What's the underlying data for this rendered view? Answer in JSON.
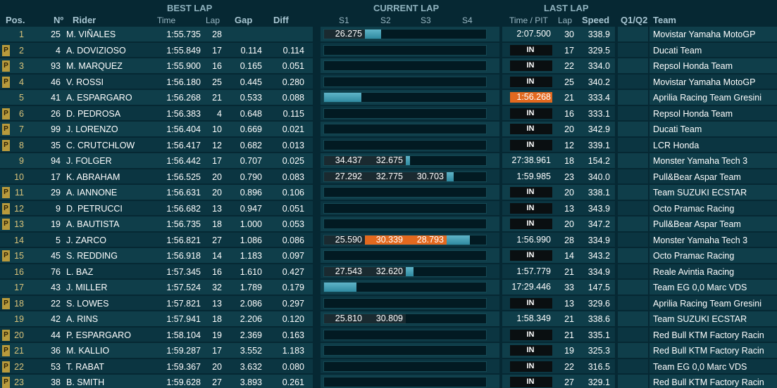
{
  "headers": {
    "best_lap": "BEST LAP",
    "current_lap": "CURRENT LAP",
    "last_lap": "LAST LAP",
    "pos": "Pos.",
    "num": "Nº",
    "rider": "Rider",
    "time": "Time",
    "lap": "Lap",
    "gap": "Gap",
    "diff": "Diff",
    "s1": "S1",
    "s2": "S2",
    "s3": "S3",
    "s4": "S4",
    "time_pit": "Time / PIT",
    "last_lap_col": "Lap",
    "speed": "Speed",
    "q1q2": "Q1/Q2",
    "team": "Team"
  },
  "rows": [
    {
      "pos": "1",
      "pit": false,
      "num": "25",
      "rider": "M. VIÑALES",
      "time": "1:55.735",
      "lap": "28",
      "gap": "",
      "diff": "",
      "s": [
        "26.275",
        "",
        "",
        ""
      ],
      "orange": [
        false,
        false,
        false,
        false
      ],
      "progress": 0.35,
      "last": "2:07.500",
      "last_type": "time",
      "llap": "30",
      "speed": "338.9",
      "team": "Movistar Yamaha MotoGP"
    },
    {
      "pos": "2",
      "pit": true,
      "num": "4",
      "rider": "A. DOVIZIOSO",
      "time": "1:55.849",
      "lap": "17",
      "gap": "0.114",
      "diff": "0.114",
      "s": [
        "",
        "",
        "",
        ""
      ],
      "orange": [
        false,
        false,
        false,
        false
      ],
      "progress": 0,
      "last": "IN",
      "last_type": "in",
      "llap": "17",
      "speed": "329.5",
      "team": "Ducati Team"
    },
    {
      "pos": "3",
      "pit": true,
      "num": "93",
      "rider": "M. MARQUEZ",
      "time": "1:55.900",
      "lap": "16",
      "gap": "0.165",
      "diff": "0.051",
      "s": [
        "",
        "",
        "",
        ""
      ],
      "orange": [
        false,
        false,
        false,
        false
      ],
      "progress": 0,
      "last": "IN",
      "last_type": "in",
      "llap": "22",
      "speed": "334.0",
      "team": "Repsol Honda Team"
    },
    {
      "pos": "4",
      "pit": true,
      "num": "46",
      "rider": "V. ROSSI",
      "time": "1:56.180",
      "lap": "25",
      "gap": "0.445",
      "diff": "0.280",
      "s": [
        "",
        "",
        "",
        ""
      ],
      "orange": [
        false,
        false,
        false,
        false
      ],
      "progress": 0,
      "last": "IN",
      "last_type": "in",
      "llap": "25",
      "speed": "340.2",
      "team": "Movistar Yamaha MotoGP"
    },
    {
      "pos": "5",
      "pit": false,
      "num": "41",
      "rider": "A. ESPARGARO",
      "time": "1:56.268",
      "lap": "21",
      "gap": "0.533",
      "diff": "0.088",
      "s": [
        "",
        "",
        "",
        ""
      ],
      "orange": [
        false,
        false,
        false,
        false
      ],
      "progress": 0.23,
      "last": "1:56.268",
      "last_type": "highlight",
      "llap": "21",
      "speed": "333.4",
      "team": "Aprilia Racing Team Gresini"
    },
    {
      "pos": "6",
      "pit": true,
      "num": "26",
      "rider": "D. PEDROSA",
      "time": "1:56.383",
      "lap": "4",
      "gap": "0.648",
      "diff": "0.115",
      "s": [
        "",
        "",
        "",
        ""
      ],
      "orange": [
        false,
        false,
        false,
        false
      ],
      "progress": 0,
      "last": "IN",
      "last_type": "in",
      "llap": "16",
      "speed": "333.1",
      "team": "Repsol Honda Team"
    },
    {
      "pos": "7",
      "pit": true,
      "num": "99",
      "rider": "J. LORENZO",
      "time": "1:56.404",
      "lap": "10",
      "gap": "0.669",
      "diff": "0.021",
      "s": [
        "",
        "",
        "",
        ""
      ],
      "orange": [
        false,
        false,
        false,
        false
      ],
      "progress": 0,
      "last": "IN",
      "last_type": "in",
      "llap": "20",
      "speed": "342.9",
      "team": "Ducati Team"
    },
    {
      "pos": "8",
      "pit": true,
      "num": "35",
      "rider": "C. CRUTCHLOW",
      "time": "1:56.417",
      "lap": "12",
      "gap": "0.682",
      "diff": "0.013",
      "s": [
        "",
        "",
        "",
        ""
      ],
      "orange": [
        false,
        false,
        false,
        false
      ],
      "progress": 0,
      "last": "IN",
      "last_type": "in",
      "llap": "12",
      "speed": "339.1",
      "team": "LCR Honda"
    },
    {
      "pos": "9",
      "pit": false,
      "num": "94",
      "rider": "J. FOLGER",
      "time": "1:56.442",
      "lap": "17",
      "gap": "0.707",
      "diff": "0.025",
      "s": [
        "34.437",
        "32.675",
        "",
        ""
      ],
      "orange": [
        false,
        false,
        false,
        false
      ],
      "progress": 0.53,
      "last": "27:38.961",
      "last_type": "time",
      "llap": "18",
      "speed": "154.2",
      "team": "Monster Yamaha Tech 3"
    },
    {
      "pos": "10",
      "pit": false,
      "num": "17",
      "rider": "K. ABRAHAM",
      "time": "1:56.525",
      "lap": "20",
      "gap": "0.790",
      "diff": "0.083",
      "s": [
        "27.292",
        "32.775",
        "30.703",
        ""
      ],
      "orange": [
        false,
        false,
        false,
        false
      ],
      "progress": 0.8,
      "last": "1:59.985",
      "last_type": "time",
      "llap": "23",
      "speed": "340.0",
      "team": "Pull&Bear Aspar Team"
    },
    {
      "pos": "11",
      "pit": true,
      "num": "29",
      "rider": "A. IANNONE",
      "time": "1:56.631",
      "lap": "20",
      "gap": "0.896",
      "diff": "0.106",
      "s": [
        "",
        "",
        "",
        ""
      ],
      "orange": [
        false,
        false,
        false,
        false
      ],
      "progress": 0,
      "last": "IN",
      "last_type": "in",
      "llap": "20",
      "speed": "338.1",
      "team": "Team SUZUKI ECSTAR"
    },
    {
      "pos": "12",
      "pit": true,
      "num": "9",
      "rider": "D. PETRUCCI",
      "time": "1:56.682",
      "lap": "13",
      "gap": "0.947",
      "diff": "0.051",
      "s": [
        "",
        "",
        "",
        ""
      ],
      "orange": [
        false,
        false,
        false,
        false
      ],
      "progress": 0,
      "last": "IN",
      "last_type": "in",
      "llap": "13",
      "speed": "343.9",
      "team": "Octo Pramac Racing"
    },
    {
      "pos": "13",
      "pit": true,
      "num": "19",
      "rider": "A. BAUTISTA",
      "time": "1:56.735",
      "lap": "18",
      "gap": "1.000",
      "diff": "0.053",
      "s": [
        "",
        "",
        "",
        ""
      ],
      "orange": [
        false,
        false,
        false,
        false
      ],
      "progress": 0,
      "last": "IN",
      "last_type": "in",
      "llap": "20",
      "speed": "347.2",
      "team": "Pull&Bear Aspar Team"
    },
    {
      "pos": "14",
      "pit": false,
      "num": "5",
      "rider": "J. ZARCO",
      "time": "1:56.821",
      "lap": "27",
      "gap": "1.086",
      "diff": "0.086",
      "s": [
        "25.590",
        "30.339",
        "28.793",
        ""
      ],
      "orange": [
        false,
        true,
        true,
        false
      ],
      "progress": 0.9,
      "last": "1:56.990",
      "last_type": "time",
      "llap": "28",
      "speed": "334.9",
      "team": "Monster Yamaha Tech 3"
    },
    {
      "pos": "15",
      "pit": true,
      "num": "45",
      "rider": "S. REDDING",
      "time": "1:56.918",
      "lap": "14",
      "gap": "1.183",
      "diff": "0.097",
      "s": [
        "",
        "",
        "",
        ""
      ],
      "orange": [
        false,
        false,
        false,
        false
      ],
      "progress": 0,
      "last": "IN",
      "last_type": "in",
      "llap": "14",
      "speed": "343.2",
      "team": "Octo Pramac Racing"
    },
    {
      "pos": "16",
      "pit": false,
      "num": "76",
      "rider": "L. BAZ",
      "time": "1:57.345",
      "lap": "16",
      "gap": "1.610",
      "diff": "0.427",
      "s": [
        "27.543",
        "32.620",
        "",
        ""
      ],
      "orange": [
        false,
        false,
        false,
        false
      ],
      "progress": 0.55,
      "last": "1:57.779",
      "last_type": "time",
      "llap": "21",
      "speed": "334.9",
      "team": "Reale Avintia Racing"
    },
    {
      "pos": "17",
      "pit": false,
      "num": "43",
      "rider": "J. MILLER",
      "time": "1:57.524",
      "lap": "32",
      "gap": "1.789",
      "diff": "0.179",
      "s": [
        "",
        "",
        "",
        ""
      ],
      "orange": [
        false,
        false,
        false,
        false
      ],
      "progress": 0.2,
      "last": "17:29.446",
      "last_type": "time",
      "llap": "33",
      "speed": "147.5",
      "team": "Team EG 0,0 Marc VDS"
    },
    {
      "pos": "18",
      "pit": true,
      "num": "22",
      "rider": "S. LOWES",
      "time": "1:57.821",
      "lap": "13",
      "gap": "2.086",
      "diff": "0.297",
      "s": [
        "",
        "",
        "",
        ""
      ],
      "orange": [
        false,
        false,
        false,
        false
      ],
      "progress": 0,
      "last": "IN",
      "last_type": "in",
      "llap": "13",
      "speed": "329.6",
      "team": "Aprilia Racing Team Gresini"
    },
    {
      "pos": "19",
      "pit": false,
      "num": "42",
      "rider": "A. RINS",
      "time": "1:57.941",
      "lap": "18",
      "gap": "2.206",
      "diff": "0.120",
      "s": [
        "25.810",
        "30.809",
        "",
        ""
      ],
      "orange": [
        false,
        false,
        false,
        false
      ],
      "progress": 0.5,
      "last": "1:58.349",
      "last_type": "time",
      "llap": "21",
      "speed": "338.6",
      "team": "Team SUZUKI ECSTAR"
    },
    {
      "pos": "20",
      "pit": true,
      "num": "44",
      "rider": "P. ESPARGARO",
      "time": "1:58.104",
      "lap": "19",
      "gap": "2.369",
      "diff": "0.163",
      "s": [
        "",
        "",
        "",
        ""
      ],
      "orange": [
        false,
        false,
        false,
        false
      ],
      "progress": 0,
      "last": "IN",
      "last_type": "in",
      "llap": "21",
      "speed": "335.1",
      "team": "Red Bull KTM Factory Racin"
    },
    {
      "pos": "21",
      "pit": true,
      "num": "36",
      "rider": "M. KALLIO",
      "time": "1:59.287",
      "lap": "17",
      "gap": "3.552",
      "diff": "1.183",
      "s": [
        "",
        "",
        "",
        ""
      ],
      "orange": [
        false,
        false,
        false,
        false
      ],
      "progress": 0,
      "last": "IN",
      "last_type": "in",
      "llap": "19",
      "speed": "325.3",
      "team": "Red Bull KTM Factory Racin"
    },
    {
      "pos": "22",
      "pit": true,
      "num": "53",
      "rider": "T. RABAT",
      "time": "1:59.367",
      "lap": "20",
      "gap": "3.632",
      "diff": "0.080",
      "s": [
        "",
        "",
        "",
        ""
      ],
      "orange": [
        false,
        false,
        false,
        false
      ],
      "progress": 0,
      "last": "IN",
      "last_type": "in",
      "llap": "22",
      "speed": "316.5",
      "team": "Team EG 0,0 Marc VDS"
    },
    {
      "pos": "23",
      "pit": true,
      "num": "38",
      "rider": "B. SMITH",
      "time": "1:59.628",
      "lap": "27",
      "gap": "3.893",
      "diff": "0.261",
      "s": [
        "",
        "",
        "",
        ""
      ],
      "orange": [
        false,
        false,
        false,
        false
      ],
      "progress": 0,
      "last": "IN",
      "last_type": "in",
      "llap": "27",
      "speed": "329.1",
      "team": "Red Bull KTM Factory Racin"
    }
  ],
  "pit_badge": "P"
}
